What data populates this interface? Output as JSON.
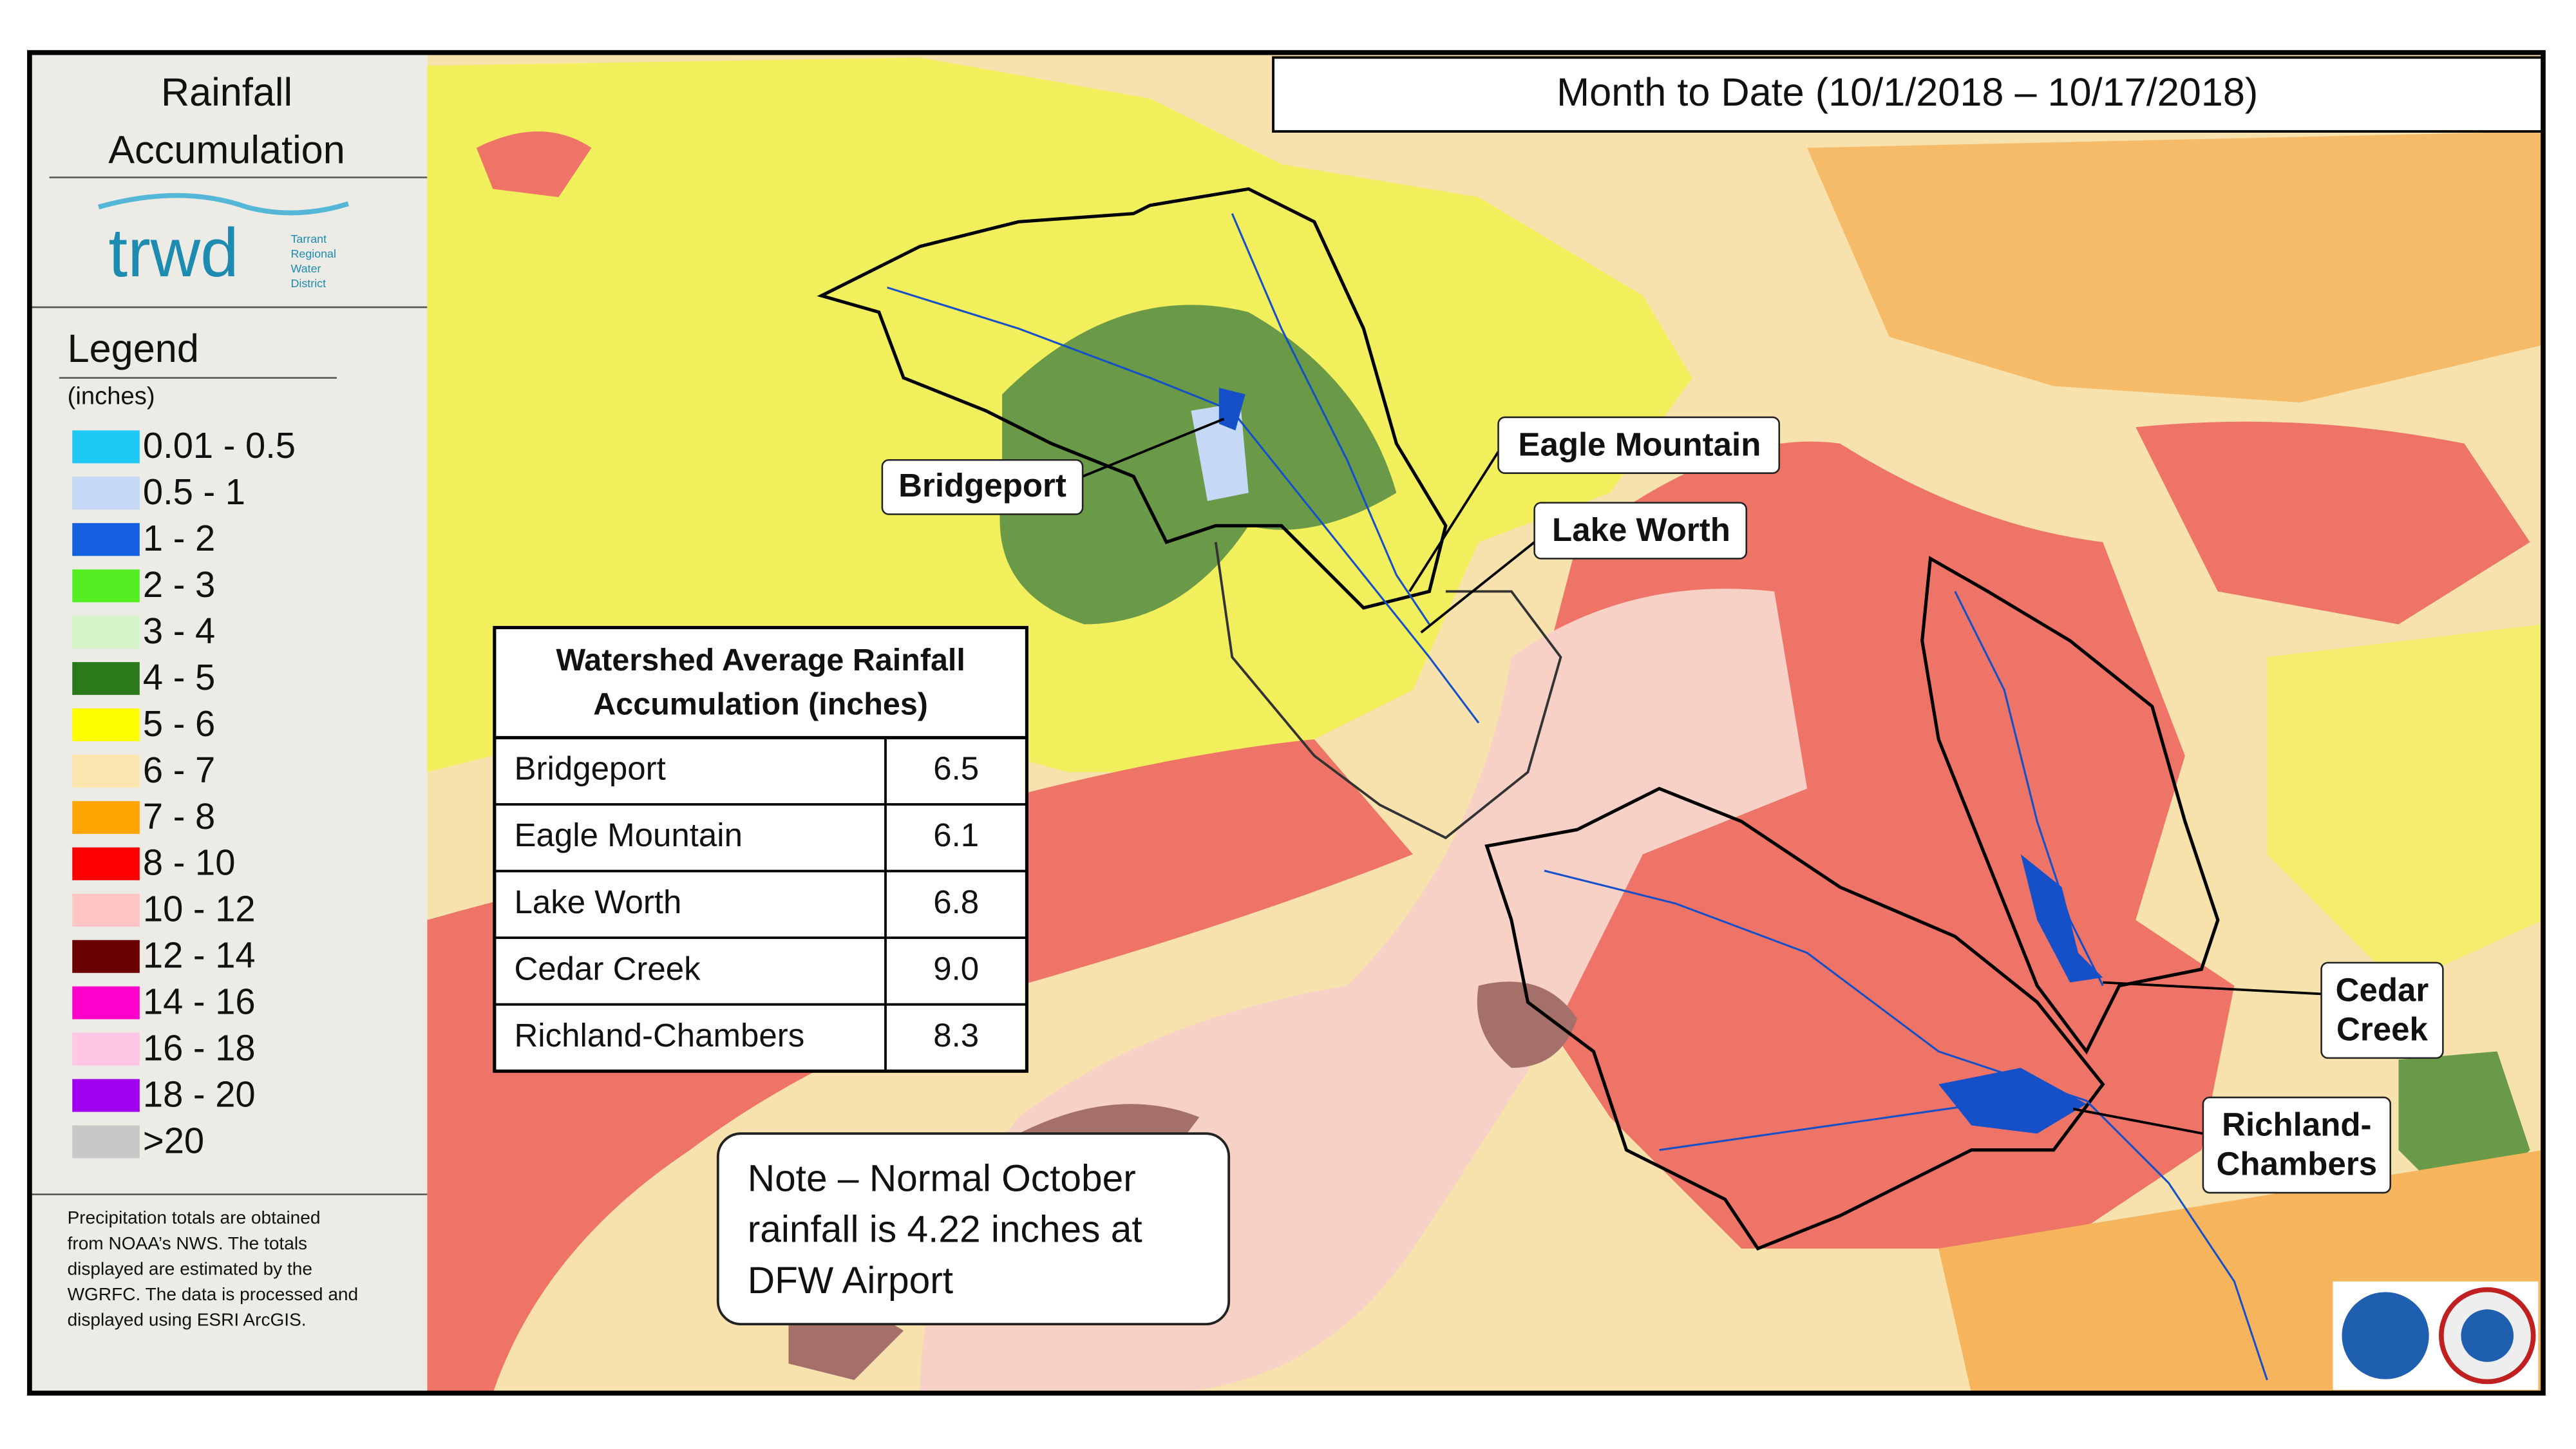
{
  "sidebar": {
    "title_lines": [
      "Rainfall",
      "Accumulation"
    ],
    "logo": {
      "wordmark": "trwd",
      "tagline": [
        "Tarrant",
        "Regional",
        "Water",
        "District"
      ]
    },
    "legend": {
      "title": "Legend",
      "units": "(inches)",
      "items": [
        {
          "label": "0.01 - 0.5",
          "color": "#1ec8f5"
        },
        {
          "label": "0.5 - 1",
          "color": "#c5d8f5"
        },
        {
          "label": "1 - 2",
          "color": "#1560e0"
        },
        {
          "label": "2 - 3",
          "color": "#55ee22"
        },
        {
          "label": "3 - 4",
          "color": "#d5f5c8"
        },
        {
          "label": "4 - 5",
          "color": "#2a7a1c"
        },
        {
          "label": "5 - 6",
          "color": "#ffff00"
        },
        {
          "label": "6 - 7",
          "color": "#fde5b0"
        },
        {
          "label": "7 - 8",
          "color": "#ffa500"
        },
        {
          "label": "8 - 10",
          "color": "#ff0000"
        },
        {
          "label": "10 - 12",
          "color": "#ffc4c4"
        },
        {
          "label": "12 - 14",
          "color": "#6a0000"
        },
        {
          "label": "14 - 16",
          "color": "#ff00cc"
        },
        {
          "label": "16 - 18",
          "color": "#ffc6e6"
        },
        {
          "label": "18 - 20",
          "color": "#a000f0"
        },
        {
          "label": ">20",
          "color": "#c8c8c8"
        }
      ]
    },
    "note_lines": [
      "Precipitation totals are obtained",
      "from NOAA’s NWS.   The totals",
      "displayed are estimated by the",
      "WGRFC.  The data is processed and",
      "displayed using ESRI ArcGIS."
    ]
  },
  "map": {
    "title": "Month to Date (10/1/2018 – 10/17/2018)",
    "callouts": [
      {
        "lines": [
          "Bridgeport"
        ]
      },
      {
        "lines": [
          "Eagle Mountain"
        ]
      },
      {
        "lines": [
          "Lake Worth"
        ]
      },
      {
        "lines": [
          "Cedar",
          "Creek"
        ]
      },
      {
        "lines": [
          "Richland-",
          "Chambers"
        ]
      }
    ],
    "note_lines": [
      "Note – Normal October",
      "rainfall is 4.22 inches at",
      "DFW Airport"
    ]
  },
  "table": {
    "header_lines": [
      "Watershed Average Rainfall",
      "Accumulation (inches)"
    ],
    "rows": [
      [
        "Bridgeport",
        "6.5"
      ],
      [
        "Eagle Mountain",
        "6.1"
      ],
      [
        "Lake Worth",
        "6.8"
      ],
      [
        "Cedar Creek",
        "9.0"
      ],
      [
        "Richland-Chambers",
        "8.3"
      ]
    ]
  }
}
